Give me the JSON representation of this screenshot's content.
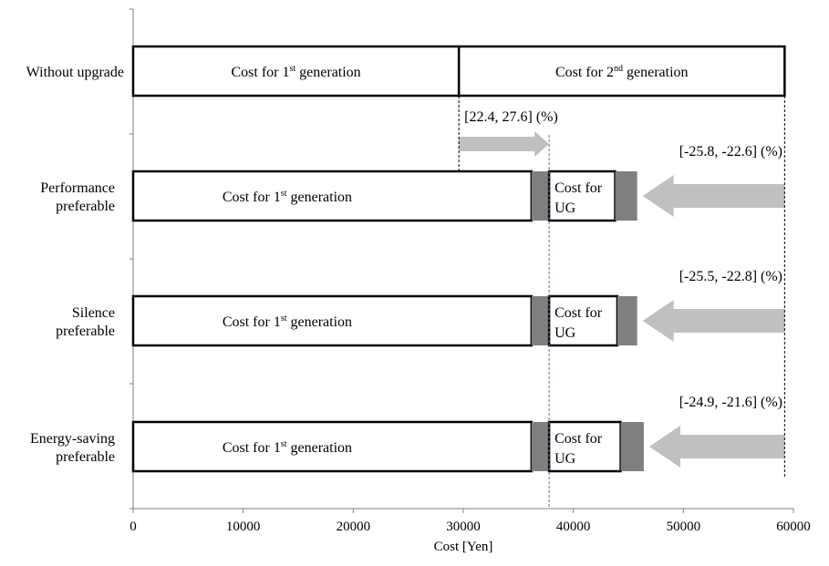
{
  "chart_data": {
    "type": "bar",
    "orientation": "horizontal",
    "stacked": true,
    "xlabel": "Cost [Yen]",
    "xlim": [
      0,
      60000
    ],
    "xticks": [
      "0",
      "10000",
      "20000",
      "30000",
      "40000",
      "50000",
      "60000"
    ],
    "grid": false,
    "categories": [
      {
        "lines": [
          "Without upgrade"
        ]
      },
      {
        "lines": [
          "Performance",
          "preferable"
        ]
      },
      {
        "lines": [
          "Silence",
          "preferable"
        ]
      },
      {
        "lines": [
          "Energy-saving",
          "preferable"
        ]
      }
    ],
    "segment_text": {
      "gen1": {
        "pre": "Cost for 1",
        "sup": "st",
        "post": " generation"
      },
      "gen2": {
        "pre": "Cost for 2",
        "sup": "nd",
        "post": " generation"
      },
      "ug": [
        "Cost for",
        "UG"
      ]
    },
    "rows": [
      {
        "segments": [
          {
            "kind": "gen1",
            "start": 0,
            "end": 29600
          },
          {
            "kind": "gen2",
            "start": 29600,
            "end": 59200
          }
        ]
      },
      {
        "segments": [
          {
            "kind": "gen1",
            "start": 0,
            "end": 36200
          },
          {
            "kind": "range",
            "start": 36200,
            "end": 37800
          },
          {
            "kind": "ug",
            "start": 37800,
            "end": 43800
          },
          {
            "kind": "range",
            "start": 43800,
            "end": 45800
          }
        ],
        "arrow": {
          "from": 59200,
          "to": 46300
        },
        "range_label": "[-25.8, -22.6] (%)"
      },
      {
        "segments": [
          {
            "kind": "gen1",
            "start": 0,
            "end": 36200
          },
          {
            "kind": "range",
            "start": 36200,
            "end": 37800
          },
          {
            "kind": "ug",
            "start": 37800,
            "end": 44000
          },
          {
            "kind": "range",
            "start": 44000,
            "end": 45800
          }
        ],
        "arrow": {
          "from": 59200,
          "to": 46300
        },
        "range_label": "[-25.5, -22.8] (%)"
      },
      {
        "segments": [
          {
            "kind": "gen1",
            "start": 0,
            "end": 36200
          },
          {
            "kind": "range",
            "start": 36200,
            "end": 37800
          },
          {
            "kind": "ug",
            "start": 37800,
            "end": 44300
          },
          {
            "kind": "range",
            "start": 44300,
            "end": 46400
          }
        ],
        "arrow": {
          "from": 59200,
          "to": 46900
        },
        "range_label": "[-24.9, -21.6] (%)"
      }
    ],
    "top_arrow": {
      "from": 29600,
      "to": 37800,
      "label": "[22.4, 27.6] (%)"
    },
    "reference_lines": [
      {
        "x": 37800,
        "style": "dashed",
        "color": "#7b5fbf"
      },
      {
        "x": 29600,
        "style": "dashed",
        "color": "#000000"
      },
      {
        "x": 59200,
        "style": "dashed",
        "color": "#000000"
      }
    ],
    "colors": {
      "range": "#7f7f7f",
      "arrow": "#c0c0c0",
      "outline": "#000000",
      "fill": "#ffffff"
    }
  }
}
